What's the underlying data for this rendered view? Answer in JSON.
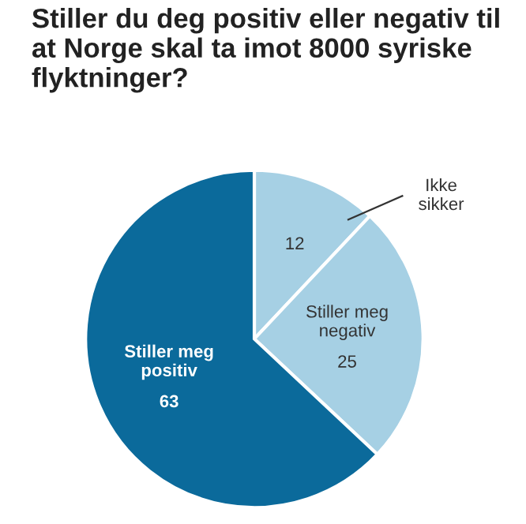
{
  "chart_data": {
    "type": "pie",
    "title": "Stiller du deg positiv eller negativ til at Norge skal ta imot 8000 syriske flyktninger?",
    "categories": [
      "Ikke sikker",
      "Stiller meg negativ",
      "Stiller meg positiv"
    ],
    "values": [
      12,
      25,
      63
    ],
    "colors": [
      "#a6d0e4",
      "#a6d0e4",
      "#0b6a9b"
    ],
    "data_labels": true
  }
}
